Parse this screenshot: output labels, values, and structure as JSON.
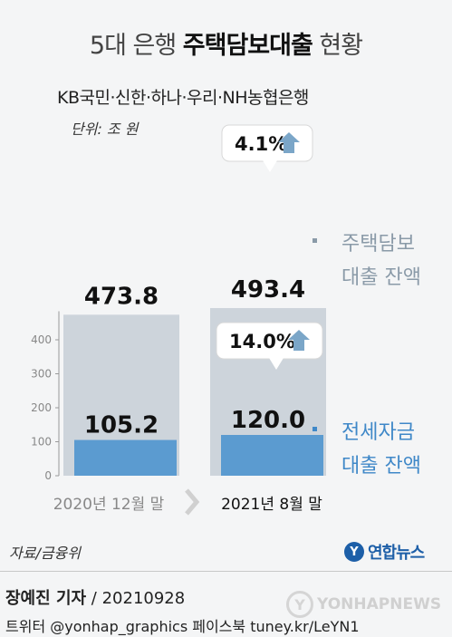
{
  "header": {
    "title_light_pre": "5대 은행 ",
    "title_bold": "주택담보대출",
    "title_light_post": " 현황",
    "subtitle": "KB국민·신한·하나·우리·NH농협은행",
    "unit": "단위: 조 원"
  },
  "chart_data": {
    "type": "bar",
    "categories": [
      "2020년 12월 말",
      "2021년 8월 말"
    ],
    "series": [
      {
        "name": "주택담보 대출 잔액",
        "values": [
          473.8,
          493.4
        ],
        "color": "#cdd4db",
        "value_labels": [
          "473.8",
          "493.4"
        ]
      },
      {
        "name": "전세자금 대출 잔액",
        "values": [
          105.2,
          120.0
        ],
        "color": "#5b9bd0",
        "value_labels": [
          "105.2",
          "120.0"
        ]
      }
    ],
    "legend_lines": [
      [
        "주택담보",
        "대출 잔액"
      ],
      [
        "전세자금",
        "대출 잔액"
      ]
    ],
    "y_ticks": [
      0,
      100,
      200,
      300,
      400
    ],
    "ylim": [
      0,
      500
    ],
    "annotations": [
      {
        "text": "4.1%",
        "icon": "arrow-up-icon",
        "series": 0,
        "category": 1
      },
      {
        "text": "14.0%",
        "icon": "arrow-up-icon",
        "series": 1,
        "category": 1
      }
    ],
    "colors": {
      "legend_housing": "#8a9aa8",
      "legend_jeonse": "#3f88c8",
      "arrow": "#7ba6c8",
      "axis": "#999999"
    }
  },
  "footer": {
    "source": "자료/금융위",
    "logo_mark": "Y",
    "logo_text": "연합뉴스",
    "reporter_name": "장예진 기자",
    "reporter_date": " / 20210928",
    "social": "트위터 @yonhap_graphics  페이스북 tuney.kr/LeYN1",
    "watermark": "YONHAPNEWS"
  }
}
